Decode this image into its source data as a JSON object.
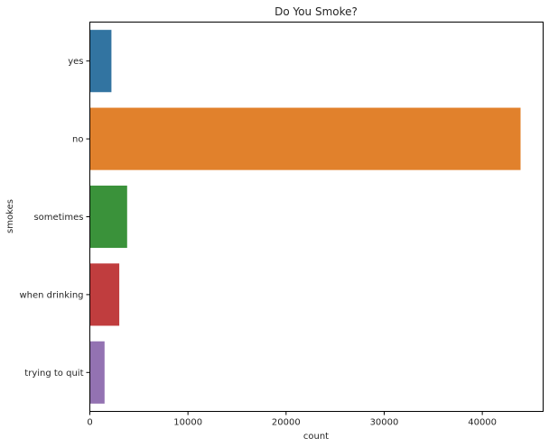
{
  "chart_data": {
    "type": "bar",
    "orientation": "horizontal",
    "title": "Do You Smoke?",
    "xlabel": "count",
    "ylabel": "smokes",
    "categories": [
      "yes",
      "no",
      "sometimes",
      "when drinking",
      "trying to quit"
    ],
    "values": [
      2200,
      43900,
      3800,
      3000,
      1500
    ],
    "colors": [
      "#3274a1",
      "#e1812c",
      "#3a923a",
      "#c03d3e",
      "#9372b2"
    ],
    "xlim": [
      0,
      46200
    ],
    "xticks": [
      0,
      10000,
      20000,
      30000,
      40000
    ],
    "xtick_labels": [
      "0",
      "10000",
      "20000",
      "30000",
      "40000"
    ],
    "grid": false,
    "legend": "none"
  }
}
